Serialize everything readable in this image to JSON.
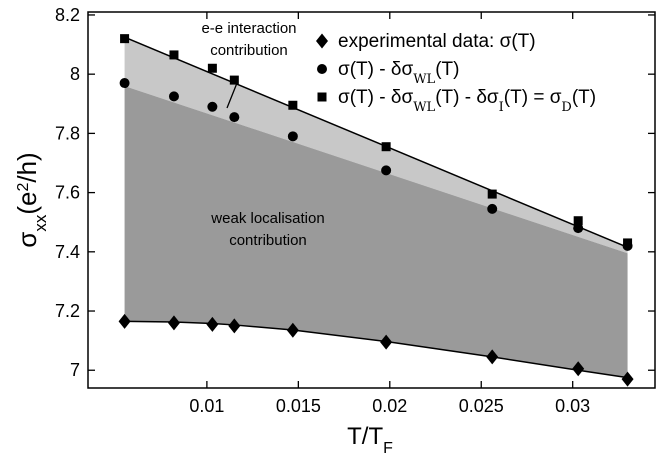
{
  "chart_data": {
    "type": "scatter",
    "x": [
      0.0055,
      0.0082,
      0.0103,
      0.0115,
      0.0147,
      0.0198,
      0.0256,
      0.0303,
      0.033
    ],
    "series": [
      {
        "name_parts": [
          "experimental data: σ(T)"
        ],
        "marker": "diamond",
        "values": [
          7.165,
          7.16,
          7.155,
          7.15,
          7.135,
          7.095,
          7.045,
          7.005,
          6.97
        ]
      },
      {
        "name_parts": [
          "σ(T) - δσ",
          "WL",
          "(T)"
        ],
        "marker": "circle",
        "values": [
          7.97,
          7.925,
          7.89,
          7.855,
          7.79,
          7.675,
          7.545,
          7.48,
          7.42
        ]
      },
      {
        "name_parts": [
          "σ(T) - δσ",
          "WL",
          "(T) - δσ",
          "I",
          "(T) = σ",
          "D",
          "(T)"
        ],
        "marker": "square",
        "values": [
          8.12,
          8.065,
          8.02,
          7.98,
          7.895,
          7.755,
          7.595,
          7.505,
          7.43
        ]
      }
    ],
    "fits": {
      "square_line": [
        [
          0.0055,
          8.125
        ],
        [
          0.033,
          7.415
        ]
      ],
      "circle_line": [
        [
          0.0055,
          7.96
        ],
        [
          0.033,
          7.395
        ]
      ],
      "diamond_curve": [
        [
          0.0055,
          7.165
        ],
        [
          0.0082,
          7.163
        ],
        [
          0.0103,
          7.158
        ],
        [
          0.0115,
          7.153
        ],
        [
          0.0147,
          7.136
        ],
        [
          0.0198,
          7.097
        ],
        [
          0.0256,
          7.045
        ],
        [
          0.0303,
          7.0
        ],
        [
          0.033,
          6.975
        ]
      ]
    },
    "xlabel_main": "T/T",
    "xlabel_sub": "F",
    "ylabel_main": "σ",
    "ylabel_sub": "xx",
    "ylabel_rest": "(e",
    "ylabel_sup": "2",
    "ylabel_end": "/h)",
    "xlim": [
      0.0035,
      0.0345
    ],
    "ylim": [
      6.94,
      8.21
    ],
    "xticks": [
      0.01,
      0.015,
      0.02,
      0.025,
      0.03
    ],
    "xtick_labels": [
      "0.01",
      "0.015",
      "0.02",
      "0.025",
      "0.03"
    ],
    "yticks": [
      7,
      7.2,
      7.4,
      7.6,
      7.8,
      8,
      8.2
    ],
    "ytick_labels": [
      "7",
      "7.2",
      "7.4",
      "7.6",
      "7.8",
      "8",
      "8.2"
    ],
    "annotations": [
      {
        "lines": [
          "e-e interaction",
          "contribution"
        ]
      },
      {
        "lines": [
          "weak localisation",
          "contribution"
        ]
      }
    ],
    "colors": {
      "light_band": "#c8c8c8",
      "dark_band": "#9a9a9a",
      "ink": "#000000"
    },
    "legend_position": "top-right",
    "grid": false
  }
}
